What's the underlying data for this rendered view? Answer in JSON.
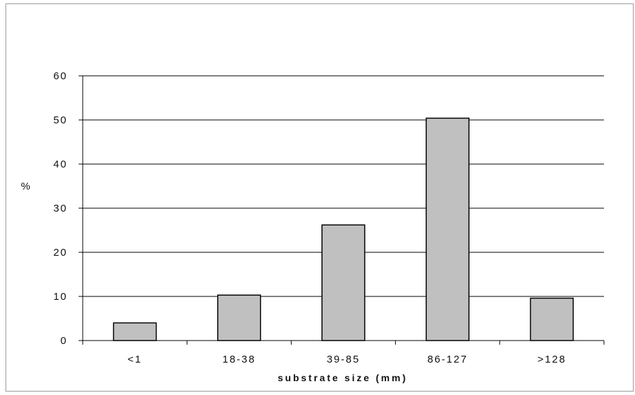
{
  "chart_data": {
    "type": "bar",
    "categories": [
      "<1",
      "18-38",
      "39-85",
      "86-127",
      ">128"
    ],
    "values": [
      4,
      10.3,
      26.2,
      50.4,
      9.6
    ],
    "xlabel": "substrate size (mm)",
    "ylabel": "%",
    "ylim": [
      0,
      60
    ],
    "yticks": [
      0,
      10,
      20,
      30,
      40,
      50,
      60
    ],
    "grid": true,
    "bar_color": "#c0c0c0",
    "bar_edge_color": "#000000"
  }
}
